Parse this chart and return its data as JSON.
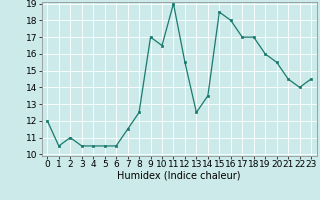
{
  "x": [
    0,
    1,
    2,
    3,
    4,
    5,
    6,
    7,
    8,
    9,
    10,
    11,
    12,
    13,
    14,
    15,
    16,
    17,
    18,
    19,
    20,
    21,
    22,
    23
  ],
  "y": [
    12,
    10.5,
    11,
    10.5,
    10.5,
    10.5,
    10.5,
    11.5,
    12.5,
    17,
    16.5,
    19,
    15.5,
    12.5,
    13.5,
    18.5,
    18,
    17,
    17,
    16,
    15.5,
    14.5,
    14,
    14.5
  ],
  "line_color": "#1a7a6e",
  "marker_color": "#1a7a6e",
  "bg_color": "#cceaea",
  "grid_color": "#ffffff",
  "xlabel": "Humidex (Indice chaleur)",
  "ylim": [
    10,
    19
  ],
  "xlim": [
    -0.5,
    23.5
  ],
  "yticks": [
    10,
    11,
    12,
    13,
    14,
    15,
    16,
    17,
    18,
    19
  ],
  "xtick_labels": [
    "0",
    "1",
    "2",
    "3",
    "4",
    "5",
    "6",
    "7",
    "8",
    "9",
    "10",
    "11",
    "12",
    "13",
    "14",
    "15",
    "16",
    "17",
    "18",
    "19",
    "20",
    "21",
    "22",
    "23"
  ],
  "xlabel_fontsize": 7,
  "tick_fontsize": 6.5
}
